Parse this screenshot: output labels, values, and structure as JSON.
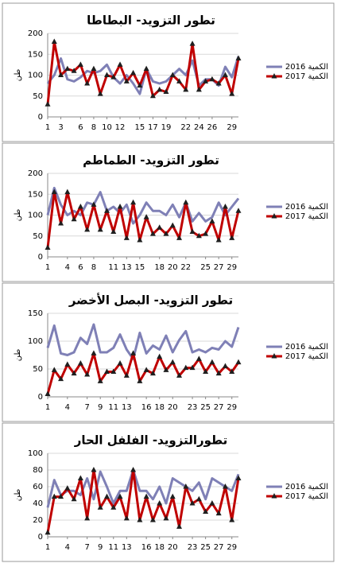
{
  "chart_data": [
    {
      "type": "line",
      "title": "تطور التزويد- البطاطا",
      "y_label": "طن",
      "x": [
        1,
        2,
        3,
        4,
        5,
        6,
        7,
        8,
        9,
        10,
        11,
        12,
        13,
        14,
        15,
        16,
        17,
        18,
        19,
        20,
        21,
        22,
        23,
        24,
        25,
        26,
        27,
        28,
        29,
        30
      ],
      "xlim": [
        1,
        30
      ],
      "xticks": [
        1,
        3,
        6,
        8,
        10,
        12,
        15,
        17,
        19,
        22,
        24,
        26,
        29
      ],
      "ylim": [
        0,
        200
      ],
      "yticks": [
        0,
        50,
        100,
        150,
        200
      ],
      "series": [
        {
          "name": "الكمية 2016",
          "color": "#7f80b6",
          "values": [
            80,
            100,
            140,
            90,
            85,
            95,
            110,
            105,
            110,
            125,
            95,
            80,
            100,
            80,
            55,
            115,
            85,
            80,
            85,
            100,
            115,
            100,
            135,
            75,
            90,
            90,
            75,
            120,
            95,
            145
          ]
        },
        {
          "name": "الكمية 2017",
          "color": "#c00000",
          "marker": "triangle",
          "values": [
            30,
            180,
            100,
            115,
            110,
            125,
            80,
            115,
            55,
            100,
            95,
            125,
            85,
            105,
            75,
            115,
            50,
            65,
            60,
            100,
            85,
            65,
            175,
            65,
            85,
            90,
            80,
            100,
            55,
            140
          ]
        }
      ]
    },
    {
      "type": "line",
      "title": "تطور التزويد- الطماطم",
      "y_label": "طن",
      "x": [
        1,
        2,
        3,
        4,
        5,
        6,
        7,
        8,
        9,
        10,
        11,
        12,
        13,
        14,
        15,
        16,
        17,
        18,
        19,
        20,
        21,
        22,
        23,
        24,
        25,
        26,
        27,
        28,
        29,
        30
      ],
      "xlim": [
        1,
        30
      ],
      "xticks": [
        1,
        4,
        6,
        8,
        11,
        13,
        15,
        18,
        20,
        22,
        25,
        27,
        29
      ],
      "ylim": [
        0,
        200
      ],
      "yticks": [
        0,
        50,
        100,
        150,
        200
      ],
      "series": [
        {
          "name": "الكمية 2016",
          "color": "#7f80b6",
          "values": [
            100,
            165,
            125,
            100,
            110,
            100,
            130,
            125,
            155,
            110,
            120,
            105,
            125,
            80,
            100,
            130,
            110,
            110,
            100,
            125,
            95,
            130,
            85,
            105,
            85,
            95,
            130,
            100,
            120,
            140
          ]
        },
        {
          "name": "الكمية 2017",
          "color": "#c00000",
          "marker": "triangle",
          "values": [
            22,
            155,
            80,
            155,
            90,
            120,
            65,
            125,
            65,
            110,
            60,
            120,
            45,
            130,
            40,
            95,
            55,
            70,
            55,
            75,
            45,
            130,
            60,
            50,
            55,
            85,
            40,
            120,
            45,
            110
          ]
        }
      ]
    },
    {
      "type": "line",
      "title": "تطور التزويد- البصل الأخضر",
      "y_label": "طن",
      "x": [
        1,
        2,
        3,
        4,
        5,
        6,
        7,
        8,
        9,
        10,
        11,
        12,
        13,
        14,
        15,
        16,
        17,
        18,
        19,
        20,
        21,
        22,
        23,
        24,
        25,
        26,
        27,
        28,
        29,
        30
      ],
      "xlim": [
        1,
        30
      ],
      "xticks": [
        1,
        4,
        7,
        9,
        11,
        13,
        16,
        18,
        20,
        23,
        25,
        27,
        29
      ],
      "ylim": [
        0,
        150
      ],
      "yticks": [
        0,
        50,
        100,
        150
      ],
      "series": [
        {
          "name": "الكمية 2016",
          "color": "#7f80b6",
          "values": [
            88,
            128,
            78,
            75,
            80,
            106,
            95,
            130,
            80,
            80,
            88,
            112,
            85,
            68,
            115,
            78,
            92,
            85,
            110,
            80,
            102,
            118,
            80,
            85,
            80,
            88,
            85,
            100,
            90,
            125
          ]
        },
        {
          "name": "الكمية 2017",
          "color": "#c00000",
          "marker": "triangle",
          "values": [
            5,
            48,
            32,
            58,
            42,
            60,
            40,
            78,
            28,
            45,
            45,
            60,
            38,
            78,
            28,
            48,
            42,
            72,
            48,
            62,
            38,
            52,
            52,
            68,
            45,
            62,
            42,
            55,
            45,
            62
          ]
        }
      ]
    },
    {
      "type": "line",
      "title": "تطورالتزويد- الفلفل الحار",
      "y_label": "طن",
      "x": [
        1,
        2,
        3,
        4,
        5,
        6,
        7,
        8,
        9,
        10,
        11,
        12,
        13,
        14,
        15,
        16,
        17,
        18,
        19,
        20,
        21,
        22,
        23,
        24,
        25,
        26,
        27,
        28,
        29,
        30
      ],
      "xlim": [
        1,
        30
      ],
      "xticks": [
        1,
        4,
        7,
        9,
        11,
        13,
        16,
        18,
        20,
        23,
        25,
        27,
        29
      ],
      "ylim": [
        0,
        100
      ],
      "yticks": [
        0,
        20,
        40,
        60,
        80,
        100
      ],
      "series": [
        {
          "name": "الكمية 2016",
          "color": "#7f80b6",
          "values": [
            35,
            68,
            50,
            55,
            55,
            50,
            70,
            45,
            78,
            60,
            40,
            55,
            55,
            80,
            55,
            55,
            45,
            60,
            40,
            70,
            65,
            60,
            55,
            65,
            45,
            70,
            65,
            60,
            55,
            75
          ]
        },
        {
          "name": "الكمية 2017",
          "color": "#c00000",
          "marker": "triangle",
          "values": [
            5,
            48,
            48,
            58,
            45,
            70,
            22,
            80,
            35,
            48,
            35,
            48,
            22,
            80,
            20,
            48,
            20,
            40,
            22,
            48,
            12,
            60,
            40,
            45,
            30,
            40,
            28,
            60,
            20,
            70
          ]
        }
      ]
    }
  ]
}
